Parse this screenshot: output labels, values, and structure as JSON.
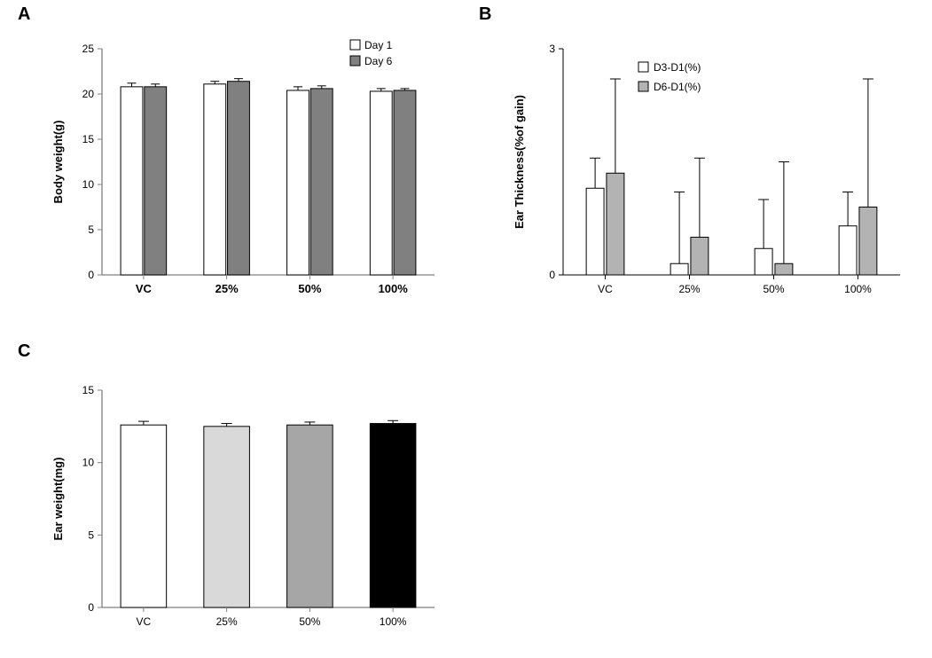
{
  "panel_label_fontsize": 20,
  "panel_label_color": "#000000",
  "font_family": "Arial, sans-serif",
  "chart_A": {
    "type": "bar",
    "categories": [
      "VC",
      "25%",
      "50%",
      "100%"
    ],
    "series": [
      {
        "name": "Day 1",
        "values": [
          20.8,
          21.1,
          20.4,
          20.3
        ],
        "errors": [
          0.4,
          0.3,
          0.4,
          0.3
        ],
        "color": "#ffffff",
        "border": "#000000"
      },
      {
        "name": "Day 6",
        "values": [
          20.8,
          21.4,
          20.6,
          20.4
        ],
        "errors": [
          0.3,
          0.3,
          0.3,
          0.2
        ],
        "color": "#808080",
        "border": "#000000"
      }
    ],
    "ylabel": "Body weight(g)",
    "ylim": [
      0,
      25
    ],
    "ytick_step": 5,
    "legend_box": 11,
    "axis_color": "#808080",
    "tick_color": "#808080",
    "bar_border_width": 1,
    "bar_group_width": 0.55,
    "bar_gap": 0.02,
    "whisker_cap": 5,
    "error_stroke": "#000000",
    "error_stroke_width": 1,
    "ylabel_fontsize": 13,
    "tick_label_fontsize": 12,
    "xcat_fontsize": 13,
    "xcat_weight": "bold",
    "legend_fontsize": 12
  },
  "chart_B": {
    "type": "bar",
    "categories": [
      "VC",
      "25%",
      "50%",
      "100%"
    ],
    "series": [
      {
        "name": "D3-D1(%)",
        "values": [
          1.15,
          0.15,
          0.35,
          0.65
        ],
        "errors": [
          0.4,
          0.95,
          0.65,
          0.45
        ],
        "color": "#ffffff",
        "border": "#000000"
      },
      {
        "name": "D6-D1(%)",
        "values": [
          1.35,
          0.5,
          0.15,
          0.9
        ],
        "errors": [
          1.25,
          1.05,
          1.35,
          1.7
        ],
        "color": "#b3b3b3",
        "border": "#000000"
      }
    ],
    "ylabel": "Ear Thickness(%of gain)",
    "ylim": [
      0,
      3
    ],
    "yticks": [
      0,
      3
    ],
    "legend_box": 11,
    "axis_color": "#000000",
    "tick_color": "#000000",
    "bar_border_width": 1,
    "bar_group_width": 0.45,
    "bar_gap": 0.03,
    "whisker_cap": 6,
    "error_stroke": "#000000",
    "error_stroke_width": 1,
    "ylabel_fontsize": 13,
    "tick_label_fontsize": 12,
    "xcat_fontsize": 12,
    "xcat_weight": "normal",
    "legend_fontsize": 12,
    "legend_show_boxes": true
  },
  "chart_C": {
    "type": "bar",
    "categories": [
      "VC",
      "25%",
      "50%",
      "100%"
    ],
    "series_single": {
      "name": "ear_weight",
      "values": [
        12.6,
        12.5,
        12.6,
        12.7
      ],
      "errors": [
        0.25,
        0.2,
        0.2,
        0.2
      ],
      "colors": [
        "#ffffff",
        "#d9d9d9",
        "#a6a6a6",
        "#000000"
      ],
      "border": "#000000"
    },
    "ylabel": "Ear weight(mg)",
    "ylim": [
      0,
      15
    ],
    "ytick_step": 5,
    "axis_color": "#808080",
    "bar_border_width": 1,
    "bar_width": 0.55,
    "whisker_cap": 6,
    "error_stroke": "#000000",
    "error_stroke_width": 1,
    "ylabel_fontsize": 13,
    "tick_label_fontsize": 12,
    "xcat_fontsize": 12,
    "xcat_weight": "normal"
  }
}
